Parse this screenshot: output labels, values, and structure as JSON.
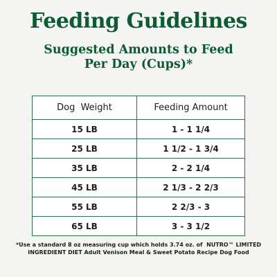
{
  "title": "Feeding Guidelines",
  "subtitle": {
    "line1": "Suggested Amounts to Feed",
    "line2": "Per Day (Cups)*"
  },
  "table": {
    "headers": [
      "Dog  Weight",
      "Feeding Amount"
    ],
    "rows": [
      {
        "weight": "15 LB",
        "amount": "1 - 1 1/4"
      },
      {
        "weight": "25 LB",
        "amount": "1 1/2 - 1 3/4"
      },
      {
        "weight": "35 LB",
        "amount": "2 - 2 1/4"
      },
      {
        "weight": "45 LB",
        "amount": "2 1/3 - 2 2/3"
      },
      {
        "weight": "55 LB",
        "amount": "2 2/3 - 3"
      },
      {
        "weight": "65 LB",
        "amount": "3 - 3 1/2"
      }
    ]
  },
  "footnote": {
    "line1": "*Use a standard 8 oz measuring cup which holds 3.74 oz. of  NUTRO™ LIMITED",
    "line2": "INGREDIENT DIET Adult Venison Meal & Sweet Potato Recipe Dog Food"
  },
  "colors": {
    "accent": "#0d5a33",
    "border": "#2a6e4a",
    "background": "#f4f4f2"
  }
}
